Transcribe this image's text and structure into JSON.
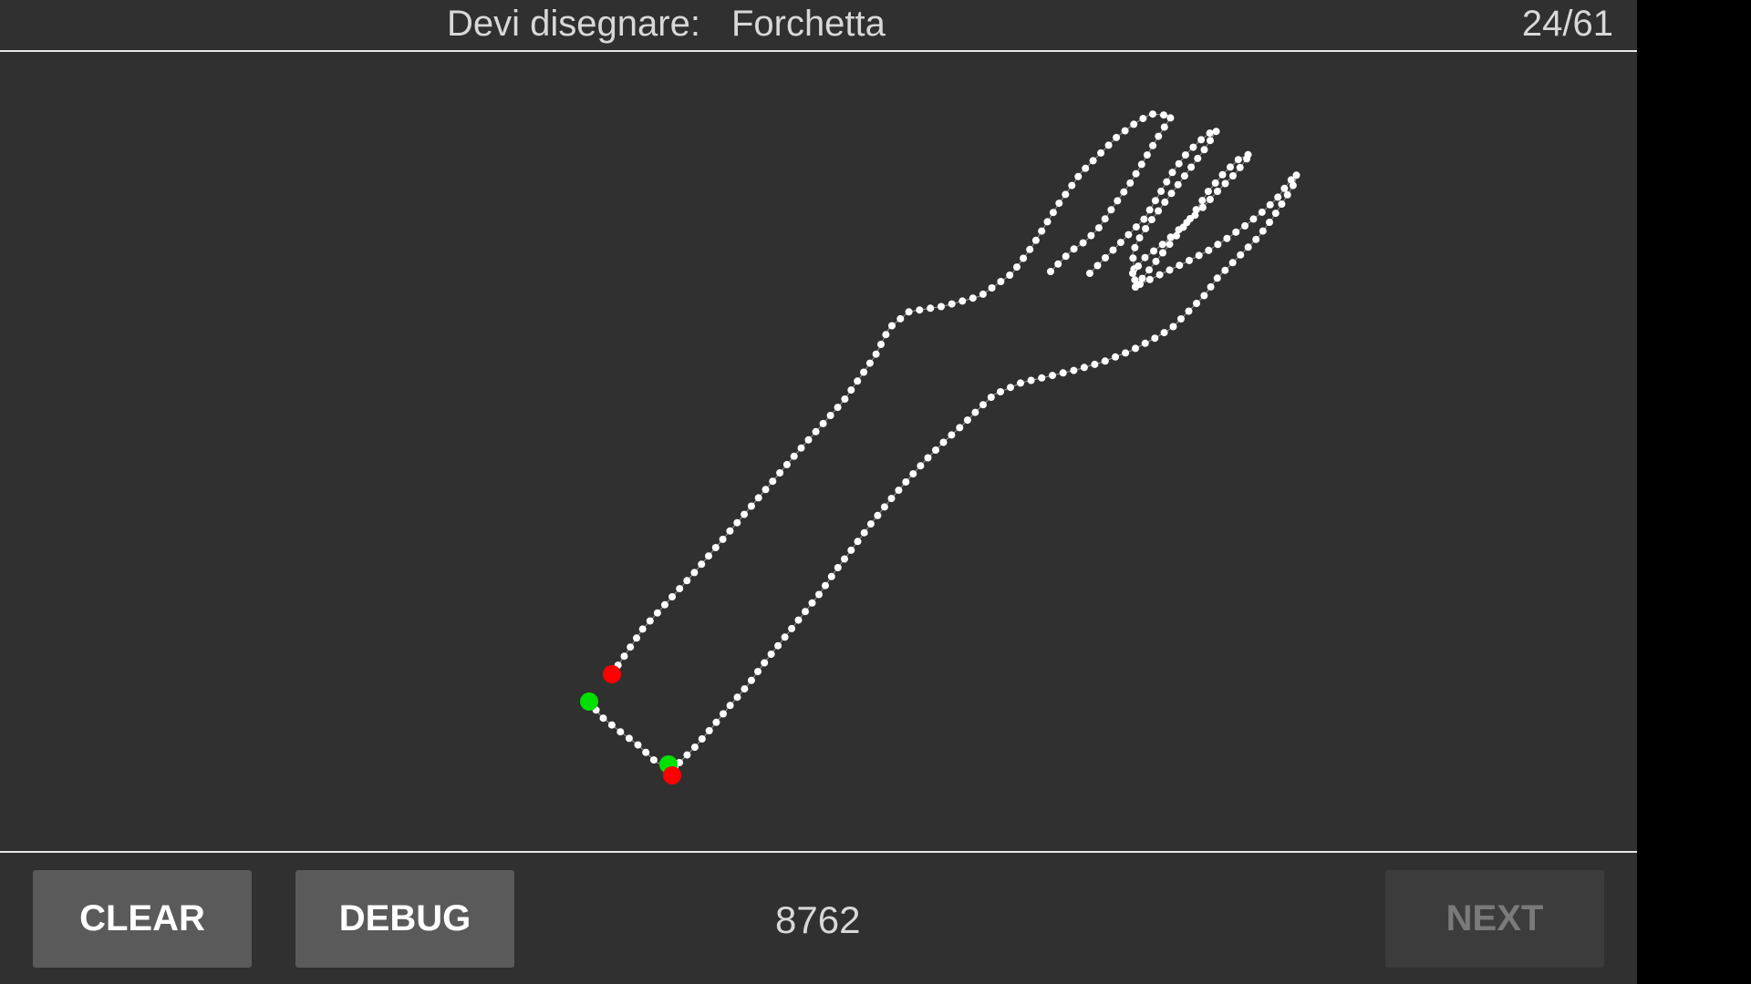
{
  "header": {
    "prompt_label": "Devi disegnare:",
    "target_word": "Forchetta",
    "counter": "24/61"
  },
  "footer": {
    "clear_label": "CLEAR",
    "debug_label": "DEBUG",
    "score": "8762",
    "next_label": "NEXT"
  },
  "colors": {
    "background": "#303030",
    "stroke_points": "#ffffff",
    "start_marker": "#00e000",
    "end_marker": "#ff0000"
  }
}
